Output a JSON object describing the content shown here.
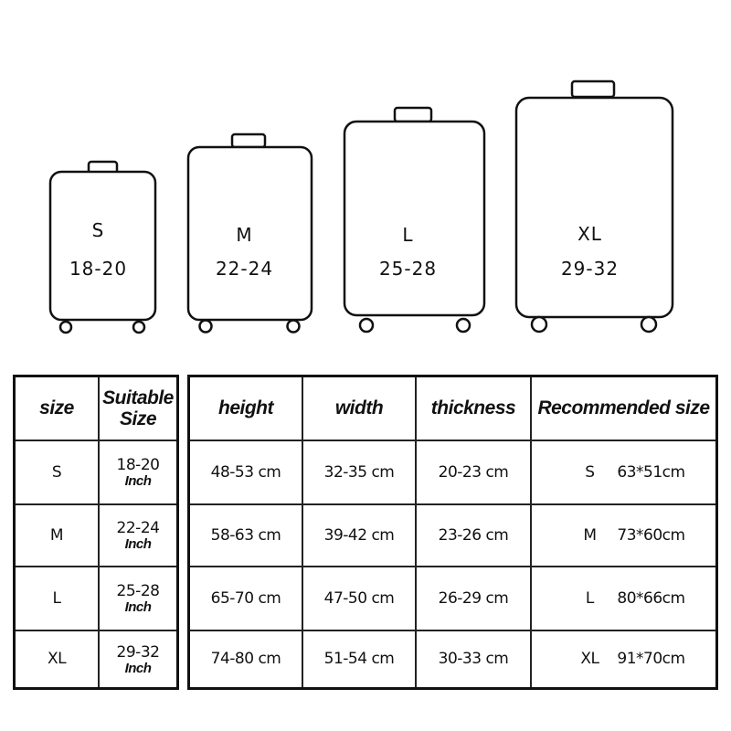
{
  "suitcases": [
    {
      "size": "S",
      "range": "18-20"
    },
    {
      "size": "M",
      "range": "22-24"
    },
    {
      "size": "L",
      "range": "25-28"
    },
    {
      "size": "XL",
      "range": "29-32"
    }
  ],
  "size_table": {
    "headers": [
      "size",
      "Suitable Size"
    ],
    "unit": "Inch",
    "rows": [
      {
        "size": "S",
        "suitable": "18-20"
      },
      {
        "size": "M",
        "suitable": "22-24"
      },
      {
        "size": "L",
        "suitable": "25-28"
      },
      {
        "size": "XL",
        "suitable": "29-32"
      }
    ]
  },
  "dimension_table": {
    "headers": [
      "height",
      "width",
      "thickness",
      "Recommended size"
    ],
    "rows": [
      {
        "height": "48-53 cm",
        "width": "32-35 cm",
        "thickness": "20-23 cm",
        "rec_size": "S",
        "rec_dims": "63*51cm"
      },
      {
        "height": "58-63 cm",
        "width": "39-42 cm",
        "thickness": "23-26 cm",
        "rec_size": "M",
        "rec_dims": "73*60cm"
      },
      {
        "height": "65-70 cm",
        "width": "47-50 cm",
        "thickness": "26-29 cm",
        "rec_size": "L",
        "rec_dims": "80*66cm"
      },
      {
        "height": "74-80 cm",
        "width": "51-54 cm",
        "thickness": "30-33 cm",
        "rec_size": "XL",
        "rec_dims": "91*70cm"
      }
    ]
  }
}
